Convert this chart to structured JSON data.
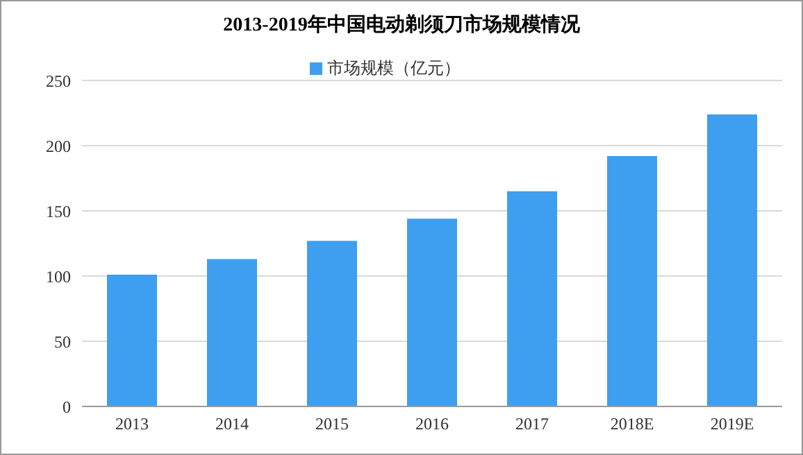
{
  "chart_data": {
    "type": "bar",
    "title": "2013-2019年中国电动剃须刀市场规模情况",
    "categories": [
      "2013",
      "2014",
      "2015",
      "2016",
      "2017",
      "2018E",
      "2019E"
    ],
    "series": [
      {
        "name": "市场规模（亿元）",
        "color": "#3e9ff0",
        "values": [
          101,
          113,
          127,
          144,
          165,
          192,
          224
        ]
      }
    ],
    "ylim": [
      0,
      250
    ],
    "yticks": [
      0,
      50,
      100,
      150,
      200,
      250
    ],
    "grid": "y",
    "legend": "top"
  }
}
